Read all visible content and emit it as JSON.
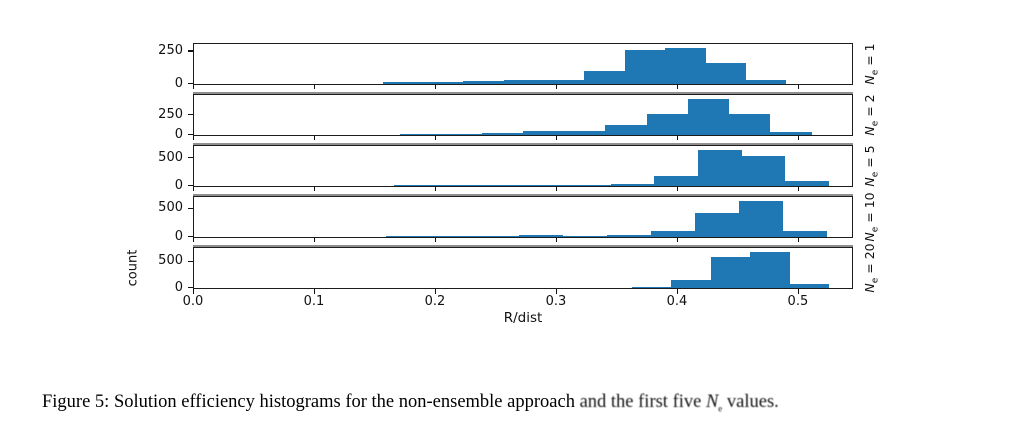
{
  "figure": {
    "caption": {
      "prefix": "Figure 5: Solution efficiency histograms for the non-ensemble approach ",
      "degraded_before": "and the first five ",
      "symbol_main": "N",
      "symbol_sub": "e",
      "degraded_after": " values."
    }
  },
  "chart_data": {
    "type": "bar",
    "subtype": "stacked-subplot-histograms",
    "title": "",
    "xlabel": "R/dist",
    "ylabel": "count",
    "x_ticks": [
      "0.0",
      "0.1",
      "0.2",
      "0.3",
      "0.4",
      "0.5"
    ],
    "xlim": [
      0.0,
      0.5455
    ],
    "grid": false,
    "bar_color": "#1f77b4",
    "panels": [
      {
        "label": "N_e = 1",
        "label_parts": {
          "sym": "N",
          "sub": "e",
          "eq": "= 1"
        },
        "yticks": [
          0,
          250
        ],
        "ylim": [
          0,
          300
        ],
        "bin_start": 0.156,
        "bin_width": 0.0333,
        "counts": [
          12,
          12,
          20,
          29,
          29,
          98,
          265,
          278,
          164,
          35
        ]
      },
      {
        "label": "N_e = 2",
        "label_parts": {
          "sym": "N",
          "sub": "e",
          "eq": "= 2"
        },
        "yticks": [
          0,
          250
        ],
        "ylim": [
          0,
          490
        ],
        "bin_start": 0.17,
        "bin_width": 0.034,
        "counts": [
          15,
          15,
          26,
          45,
          52,
          130,
          260,
          450,
          265,
          37
        ]
      },
      {
        "label": "N_e = 5",
        "label_parts": {
          "sym": "N",
          "sub": "e",
          "eq": "= 5"
        },
        "yticks": [
          0,
          500
        ],
        "ylim": [
          0,
          705
        ],
        "bin_start": 0.165,
        "bin_width": 0.0359,
        "counts": [
          15,
          15,
          20,
          20,
          25,
          45,
          185,
          655,
          540,
          85
        ]
      },
      {
        "label": "N_e = 10",
        "label_parts": {
          "sym": "N",
          "sub": "e",
          "eq": "= 10"
        },
        "yticks": [
          0,
          500
        ],
        "ylim": [
          0,
          690
        ],
        "bin_start": 0.159,
        "bin_width": 0.0364,
        "counts": [
          10,
          10,
          10,
          45,
          22,
          40,
          115,
          430,
          640,
          115
        ]
      },
      {
        "label": "N_e = 20",
        "label_parts": {
          "sym": "N",
          "sub": "e",
          "eq": "= 20"
        },
        "yticks": [
          0,
          500
        ],
        "ylim": [
          0,
          740
        ],
        "bin_start": 0.362,
        "bin_width": 0.0325,
        "counts": [
          20,
          145,
          590,
          690,
          85
        ]
      }
    ]
  }
}
